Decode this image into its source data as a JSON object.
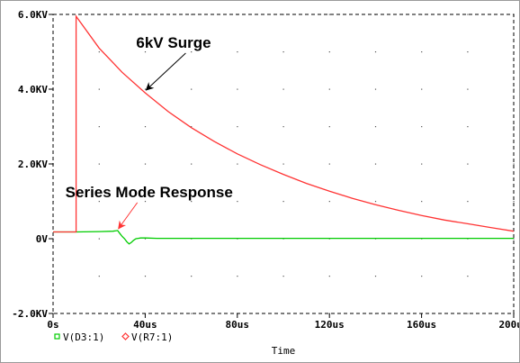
{
  "chart_data": {
    "type": "line",
    "title": "",
    "xlabel": "Time",
    "ylabel": "",
    "xlim": [
      0,
      200
    ],
    "ylim": [
      -2.0,
      6.0
    ],
    "x_ticks": [
      0,
      40,
      80,
      120,
      160,
      200
    ],
    "x_tick_labels": [
      "0s",
      "40us",
      "80us",
      "120us",
      "160us",
      "200us"
    ],
    "y_ticks": [
      -2.0,
      0,
      2.0,
      4.0,
      6.0
    ],
    "y_tick_labels": [
      "-2.0KV",
      "0V",
      "2.0KV",
      "4.0KV",
      "6.0KV"
    ],
    "grid": "dotted",
    "legend_position": "bottom-left",
    "series": [
      {
        "name": "V(D3:1)",
        "color": "#00cc00",
        "marker": "square",
        "x": [
          0,
          10,
          20,
          26,
          28,
          29,
          30,
          31,
          32,
          33,
          34,
          35,
          36,
          37,
          38,
          40,
          45,
          50,
          60,
          80,
          100,
          120,
          140,
          160,
          180,
          200
        ],
        "y": [
          0.18,
          0.18,
          0.19,
          0.2,
          0.22,
          0.14,
          0.06,
          0.0,
          -0.08,
          -0.14,
          -0.1,
          -0.04,
          0.0,
          0.01,
          0.02,
          0.02,
          0.01,
          0.01,
          0.01,
          0.01,
          0.01,
          0.01,
          0.01,
          0.01,
          0.01,
          0.01
        ]
      },
      {
        "name": "V(R7:1)",
        "color": "#ff3333",
        "marker": "diamond",
        "x": [
          0,
          10,
          10,
          20,
          30,
          40,
          50,
          60,
          70,
          80,
          90,
          100,
          110,
          120,
          130,
          140,
          150,
          160,
          170,
          180,
          190,
          200
        ],
        "y": [
          0.18,
          0.18,
          5.95,
          5.1,
          4.45,
          3.9,
          3.4,
          2.97,
          2.6,
          2.27,
          1.98,
          1.72,
          1.48,
          1.27,
          1.08,
          0.91,
          0.76,
          0.62,
          0.5,
          0.4,
          0.3,
          0.2
        ]
      }
    ],
    "annotations": [
      {
        "text": "6kV Surge",
        "target_x": 40,
        "target_y": 4.0
      },
      {
        "text": "Series Mode Response",
        "target_x": 28,
        "target_y": 0.22
      }
    ]
  }
}
